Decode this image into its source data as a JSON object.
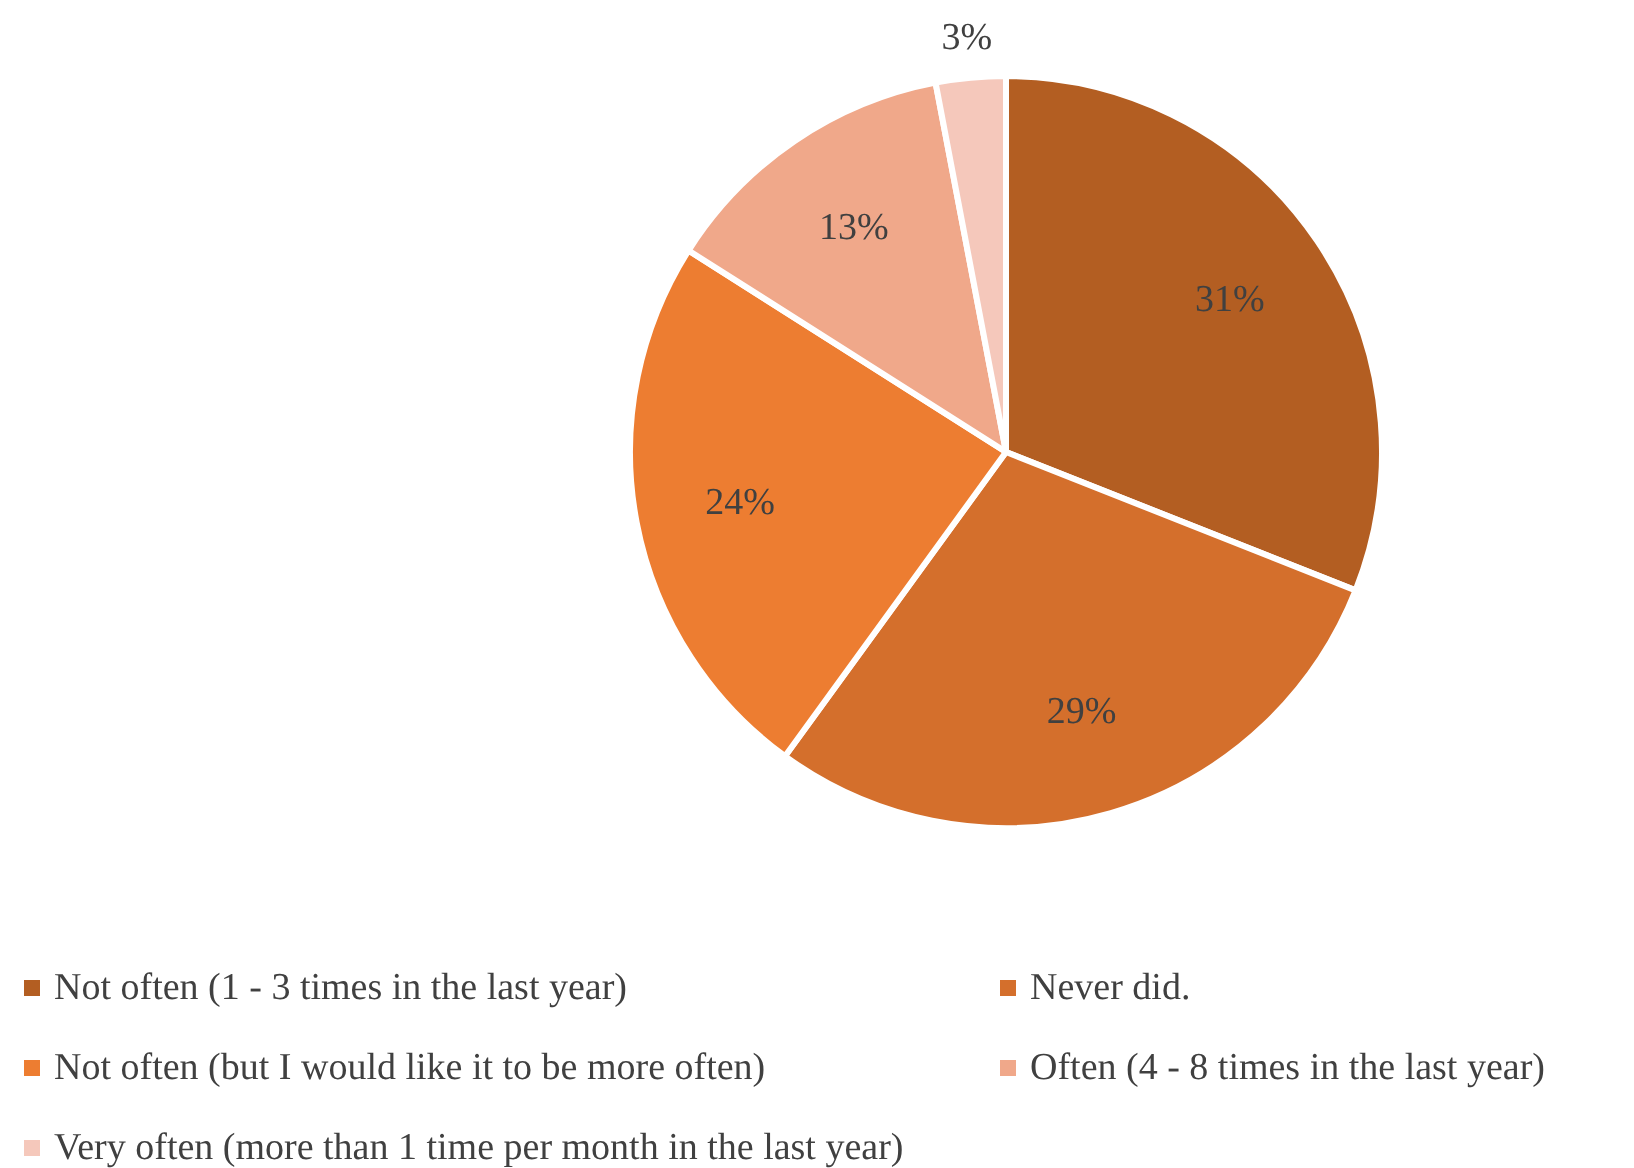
{
  "chart_data": {
    "type": "pie",
    "categories": [
      "Not often (1 - 3 times in the last year)",
      "Never did.",
      "Not often (but I would like it to be more often)",
      "Often (4 - 8 times in the last year)",
      "Very often (more than 1 time per month in the last year)"
    ],
    "values": [
      31,
      29,
      24,
      13,
      3
    ],
    "colors": [
      "#b35e22",
      "#d46f2c",
      "#ed7d31",
      "#f0a88a",
      "#f5c8bb"
    ],
    "value_labels": [
      "31%",
      "29%",
      "24%",
      "13%",
      "3%"
    ],
    "legend": "bottom"
  }
}
